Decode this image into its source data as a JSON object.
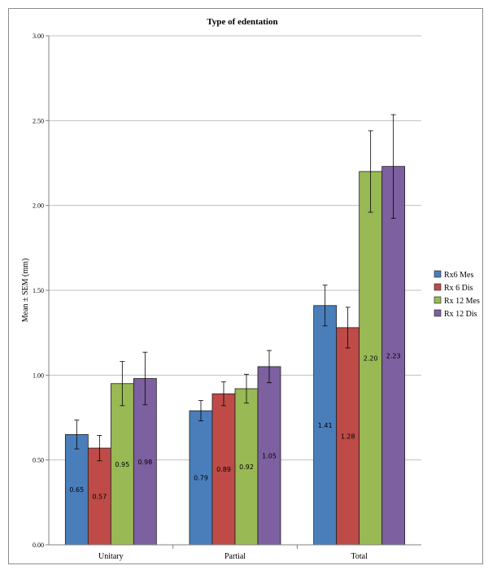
{
  "chart_data": {
    "type": "bar",
    "title": "Type of edentation",
    "xlabel": "",
    "ylabel": "Mean ± SEM (mm)",
    "ylim": [
      0,
      3
    ],
    "yticks": [
      "0.00",
      "0.50",
      "1.00",
      "1.50",
      "2.00",
      "2.50",
      "3.00"
    ],
    "grid": true,
    "legend_position": "right",
    "categories": [
      "Unitary",
      "Partial",
      "Total"
    ],
    "series": [
      {
        "name": "Rx6 Mes",
        "color": "#4a7ebb",
        "values": [
          0.65,
          0.79,
          1.41
        ],
        "labels": [
          "0.65",
          "0.79",
          "1.41"
        ],
        "errors": [
          0.085,
          0.06,
          0.12
        ]
      },
      {
        "name": "Rx 6 Dis",
        "color": "#be4b48",
        "values": [
          0.57,
          0.89,
          1.28
        ],
        "labels": [
          "0.57",
          "0.89",
          "1.28"
        ],
        "errors": [
          0.075,
          0.07,
          0.12
        ]
      },
      {
        "name": "Rx 12 Mes",
        "color": "#98b954",
        "values": [
          0.95,
          0.92,
          2.2
        ],
        "labels": [
          "0.95",
          "0.92",
          "2.20"
        ],
        "errors": [
          0.13,
          0.085,
          0.24
        ]
      },
      {
        "name": "Rx 12 Dis",
        "color": "#7d60a0",
        "values": [
          0.98,
          1.05,
          2.23
        ],
        "labels": [
          "0.98",
          "1.05",
          "2.23"
        ],
        "errors": [
          0.155,
          0.095,
          0.305
        ]
      }
    ]
  }
}
